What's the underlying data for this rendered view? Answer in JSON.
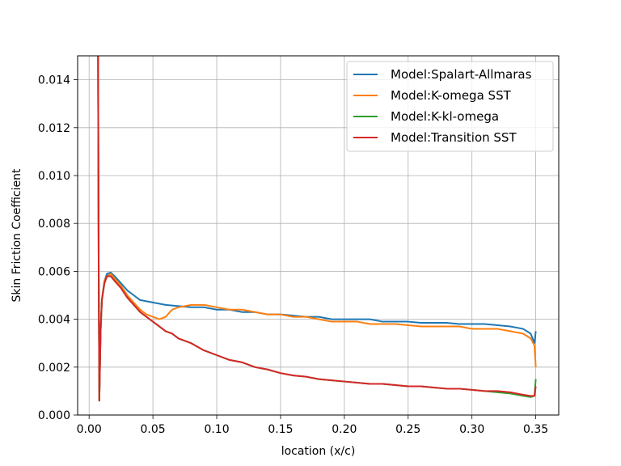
{
  "chart_data": {
    "type": "line",
    "title": "",
    "xlabel": "location (x/c)",
    "ylabel": "Skin Friction Coefficient",
    "xlim": [
      -0.009,
      0.368
    ],
    "ylim": [
      0.0,
      0.015
    ],
    "xticks": [
      0.0,
      0.05,
      0.1,
      0.15,
      0.2,
      0.25,
      0.3,
      0.35
    ],
    "xtick_labels": [
      "0.00",
      "0.05",
      "0.10",
      "0.15",
      "0.20",
      "0.25",
      "0.30",
      "0.35"
    ],
    "yticks": [
      0.0,
      0.002,
      0.004,
      0.006,
      0.008,
      0.01,
      0.012,
      0.014
    ],
    "ytick_labels": [
      "0.000",
      "0.002",
      "0.004",
      "0.006",
      "0.008",
      "0.010",
      "0.012",
      "0.014"
    ],
    "grid": true,
    "legend_position": "top-right",
    "series": [
      {
        "name": "Model:Spalart-Allmaras",
        "color": "#1f77b4",
        "x": [
          0.007,
          0.0075,
          0.008,
          0.009,
          0.01,
          0.012,
          0.014,
          0.017,
          0.02,
          0.025,
          0.03,
          0.035,
          0.04,
          0.045,
          0.05,
          0.055,
          0.06,
          0.07,
          0.08,
          0.09,
          0.1,
          0.11,
          0.12,
          0.13,
          0.14,
          0.15,
          0.16,
          0.17,
          0.18,
          0.19,
          0.2,
          0.21,
          0.22,
          0.23,
          0.24,
          0.25,
          0.26,
          0.27,
          0.28,
          0.29,
          0.3,
          0.31,
          0.32,
          0.33,
          0.34,
          0.346,
          0.349,
          0.35
        ],
        "y": [
          0.0155,
          0.006,
          0.0006,
          0.0035,
          0.0048,
          0.0056,
          0.0059,
          0.00595,
          0.0058,
          0.0055,
          0.0052,
          0.005,
          0.0048,
          0.00475,
          0.0047,
          0.00465,
          0.0046,
          0.00455,
          0.0045,
          0.0045,
          0.0044,
          0.0044,
          0.0043,
          0.0043,
          0.0042,
          0.0042,
          0.00415,
          0.0041,
          0.0041,
          0.004,
          0.004,
          0.004,
          0.004,
          0.0039,
          0.0039,
          0.0039,
          0.00385,
          0.00385,
          0.00385,
          0.0038,
          0.0038,
          0.0038,
          0.00375,
          0.0037,
          0.0036,
          0.0034,
          0.003,
          0.0035
        ]
      },
      {
        "name": "Model:K-omega SST",
        "color": "#ff7f0e",
        "x": [
          0.007,
          0.0075,
          0.008,
          0.009,
          0.01,
          0.012,
          0.014,
          0.017,
          0.02,
          0.025,
          0.03,
          0.035,
          0.04,
          0.045,
          0.05,
          0.055,
          0.06,
          0.065,
          0.07,
          0.08,
          0.09,
          0.1,
          0.11,
          0.12,
          0.13,
          0.14,
          0.15,
          0.16,
          0.17,
          0.18,
          0.19,
          0.2,
          0.21,
          0.22,
          0.23,
          0.24,
          0.25,
          0.26,
          0.27,
          0.28,
          0.29,
          0.3,
          0.31,
          0.32,
          0.33,
          0.34,
          0.346,
          0.349,
          0.35
        ],
        "y": [
          0.0155,
          0.006,
          0.0006,
          0.0035,
          0.0048,
          0.0056,
          0.0058,
          0.0059,
          0.0057,
          0.0054,
          0.005,
          0.0047,
          0.0044,
          0.0042,
          0.0041,
          0.004,
          0.0041,
          0.0044,
          0.0045,
          0.0046,
          0.0046,
          0.0045,
          0.0044,
          0.0044,
          0.0043,
          0.0042,
          0.0042,
          0.0041,
          0.0041,
          0.004,
          0.0039,
          0.0039,
          0.0039,
          0.0038,
          0.0038,
          0.0038,
          0.00375,
          0.0037,
          0.0037,
          0.0037,
          0.0037,
          0.0036,
          0.0036,
          0.0036,
          0.0035,
          0.0034,
          0.0032,
          0.0029,
          0.002
        ]
      },
      {
        "name": "Model:K-kl-omega",
        "color": "#2ca02c",
        "x": [
          0.007,
          0.0075,
          0.008,
          0.009,
          0.01,
          0.012,
          0.014,
          0.017,
          0.02,
          0.025,
          0.03,
          0.035,
          0.04,
          0.045,
          0.05,
          0.055,
          0.06,
          0.065,
          0.07,
          0.08,
          0.09,
          0.1,
          0.11,
          0.12,
          0.13,
          0.14,
          0.15,
          0.16,
          0.17,
          0.18,
          0.19,
          0.2,
          0.21,
          0.22,
          0.23,
          0.24,
          0.25,
          0.26,
          0.27,
          0.28,
          0.29,
          0.3,
          0.31,
          0.32,
          0.33,
          0.34,
          0.346,
          0.349,
          0.35
        ],
        "y": [
          0.0155,
          0.006,
          0.0006,
          0.0035,
          0.0048,
          0.0055,
          0.0058,
          0.0058,
          0.0056,
          0.0053,
          0.0049,
          0.0046,
          0.0043,
          0.0041,
          0.0039,
          0.0037,
          0.0035,
          0.0034,
          0.0032,
          0.003,
          0.0027,
          0.0025,
          0.0023,
          0.0022,
          0.002,
          0.0019,
          0.00175,
          0.00165,
          0.0016,
          0.0015,
          0.00145,
          0.0014,
          0.00135,
          0.0013,
          0.0013,
          0.00125,
          0.0012,
          0.0012,
          0.00115,
          0.0011,
          0.0011,
          0.00105,
          0.001,
          0.00095,
          0.0009,
          0.0008,
          0.00075,
          0.0008,
          0.0015
        ]
      },
      {
        "name": "Model:Transition SST",
        "color": "#d62728",
        "x": [
          0.007,
          0.0075,
          0.008,
          0.009,
          0.01,
          0.012,
          0.014,
          0.017,
          0.02,
          0.025,
          0.03,
          0.035,
          0.04,
          0.045,
          0.05,
          0.055,
          0.06,
          0.065,
          0.07,
          0.08,
          0.09,
          0.1,
          0.11,
          0.12,
          0.13,
          0.14,
          0.15,
          0.16,
          0.17,
          0.18,
          0.19,
          0.2,
          0.21,
          0.22,
          0.23,
          0.24,
          0.25,
          0.26,
          0.27,
          0.28,
          0.29,
          0.3,
          0.31,
          0.32,
          0.33,
          0.34,
          0.346,
          0.349,
          0.35
        ],
        "y": [
          0.0155,
          0.006,
          0.0006,
          0.0035,
          0.0048,
          0.0055,
          0.0058,
          0.0058,
          0.0056,
          0.0053,
          0.0049,
          0.0046,
          0.0043,
          0.0041,
          0.0039,
          0.0037,
          0.0035,
          0.0034,
          0.0032,
          0.003,
          0.0027,
          0.0025,
          0.0023,
          0.0022,
          0.002,
          0.0019,
          0.00175,
          0.00165,
          0.0016,
          0.0015,
          0.00145,
          0.0014,
          0.00135,
          0.0013,
          0.0013,
          0.00125,
          0.0012,
          0.0012,
          0.00115,
          0.0011,
          0.0011,
          0.00105,
          0.001,
          0.001,
          0.00095,
          0.00085,
          0.0008,
          0.0008,
          0.0012
        ]
      }
    ]
  }
}
